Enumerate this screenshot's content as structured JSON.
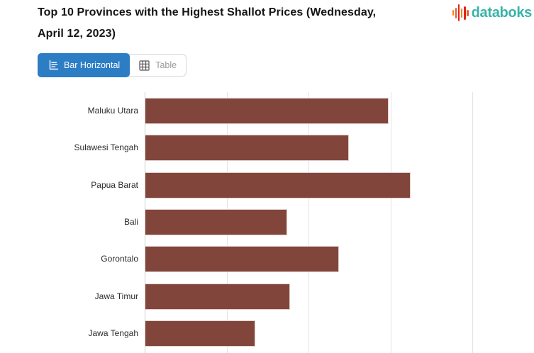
{
  "header": {
    "title_line1": "Top 10 Provinces with the Highest Shallot Prices (Wednesday,",
    "title_line2": "April 12, 2023)",
    "logo_text": "databoks",
    "logo_text_color": "#38b2a9",
    "logo_bar_colors": [
      "#f58220",
      "#f05a28",
      "#e1251b",
      "#f58220",
      "#e1251b",
      "#f05a28"
    ],
    "logo_bar_heights": [
      8,
      15,
      24,
      13,
      19,
      9
    ]
  },
  "toolbar": {
    "bar_horizontal_label": "Bar Horizontal",
    "table_label": "Table",
    "active_tab": "Bar Horizontal",
    "active_color": "#2c7dc4"
  },
  "chart_data": {
    "type": "bar",
    "orientation": "horizontal",
    "title": "Top 10 Provinces with the Highest Shallot Prices (Wednesday, April 12, 2023)",
    "categories": [
      "Maluku Utara",
      "Sulawesi Tengah",
      "Papua Barat",
      "Bali",
      "Gorontalo",
      "Jawa Timur",
      "Jawa Tengah"
    ],
    "values": [
      59600,
      49900,
      64900,
      34800,
      47400,
      35500,
      27000
    ],
    "xlabel": "",
    "ylabel": "",
    "xlim": [
      0,
      85000
    ],
    "gridline_interval": 20000,
    "grid": true,
    "legend": false,
    "bar_color": "#81453b",
    "gridline_color": "#e3e3e3",
    "axis_line_color": "#cfcfcf",
    "note": "Chart is cropped at the bottom: only 7 of the Top 10 bars are visible and x-axis tick labels are cut off; values estimated from gridline spacing assuming 20,000 per division."
  }
}
